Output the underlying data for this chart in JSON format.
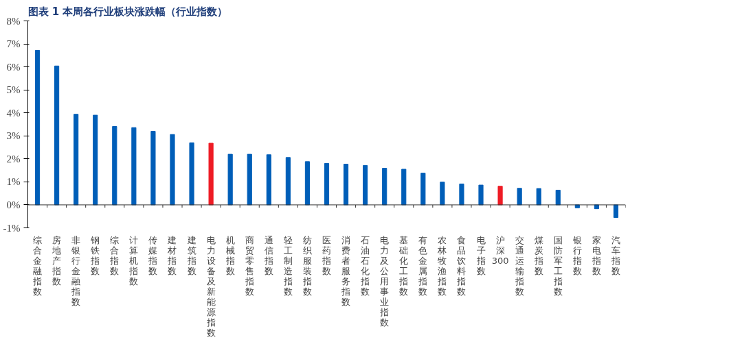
{
  "chart_data": {
    "type": "bar",
    "title": "图表 1   本周各行业板块涨跌幅（行业指数）",
    "categories": [
      "综合金融指数",
      "房地产指数",
      "非银行金融指数",
      "钢铁指数",
      "综合指数",
      "计算机指数",
      "传媒指数",
      "建材指数",
      "建筑指数",
      "电力设备及新能源指数",
      "机械指数",
      "商贸零售指数",
      "通信指数",
      "轻工制造指数",
      "纺织服装指数",
      "医药指数",
      "消费者服务指数",
      "石油石化指数",
      "电力及公用事业指数",
      "基础化工指数",
      "有色金属指数",
      "农林牧渔指数",
      "食品饮料指数",
      "电子指数",
      "沪深300",
      "交通运输指数",
      "煤炭指数",
      "国防军工指数",
      "银行指数",
      "家电指数",
      "汽车指数"
    ],
    "values": [
      6.72,
      6.04,
      3.94,
      3.9,
      3.41,
      3.36,
      3.2,
      3.06,
      2.7,
      2.68,
      2.2,
      2.2,
      2.18,
      2.06,
      1.88,
      1.8,
      1.77,
      1.71,
      1.59,
      1.55,
      1.38,
      0.99,
      0.91,
      0.86,
      0.81,
      0.72,
      0.71,
      0.64,
      -0.13,
      -0.17,
      -0.55
    ],
    "colors": [
      "#005eb8",
      "#005eb8",
      "#005eb8",
      "#005eb8",
      "#005eb8",
      "#005eb8",
      "#005eb8",
      "#005eb8",
      "#005eb8",
      "#ee1c25",
      "#005eb8",
      "#005eb8",
      "#005eb8",
      "#005eb8",
      "#005eb8",
      "#005eb8",
      "#005eb8",
      "#005eb8",
      "#005eb8",
      "#005eb8",
      "#005eb8",
      "#005eb8",
      "#005eb8",
      "#005eb8",
      "#ee1c25",
      "#005eb8",
      "#005eb8",
      "#005eb8",
      "#005eb8",
      "#005eb8",
      "#005eb8"
    ],
    "ylim": [
      -1,
      8
    ],
    "yticks": [
      {
        "value": -1,
        "label": "-1%"
      },
      {
        "value": 0,
        "label": "0%"
      },
      {
        "value": 1,
        "label": "1%"
      },
      {
        "value": 2,
        "label": "2%"
      },
      {
        "value": 3,
        "label": "3%"
      },
      {
        "value": 4,
        "label": "4%"
      },
      {
        "value": 5,
        "label": "5%"
      },
      {
        "value": 6,
        "label": "6%"
      },
      {
        "value": 7,
        "label": "7%"
      },
      {
        "value": 8,
        "label": "8%"
      }
    ]
  }
}
